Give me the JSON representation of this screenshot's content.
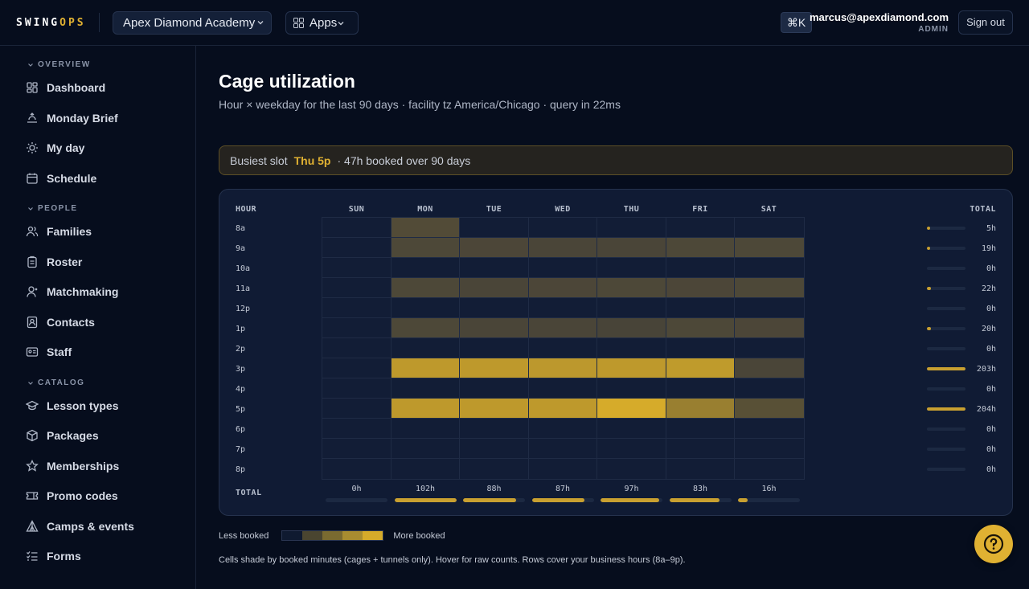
{
  "header": {
    "logo_a": "SWING",
    "logo_b": "OPS",
    "org": "Apex Diamond Academy",
    "apps": "Apps",
    "shortcut": "⌘K",
    "user_email": "marcus@apexdiamond.com",
    "user_role": "ADMIN",
    "sign_out": "Sign out"
  },
  "sidebar": {
    "sections": [
      {
        "title": "OVERVIEW",
        "items": [
          "Dashboard",
          "Monday Brief",
          "My day",
          "Schedule"
        ]
      },
      {
        "title": "PEOPLE",
        "items": [
          "Families",
          "Roster",
          "Matchmaking",
          "Contacts",
          "Staff"
        ]
      },
      {
        "title": "CATALOG",
        "items": [
          "Lesson types",
          "Packages",
          "Memberships",
          "Promo codes",
          "Camps & events",
          "Forms"
        ]
      }
    ]
  },
  "page": {
    "title": "Cage utilization",
    "subtitle": "Hour × weekday for the last 90 days · facility tz America/Chicago · query in 22ms",
    "busiest_label": "Busiest slot",
    "busiest_slot": "Thu 5p",
    "busiest_detail": "· 47h booked over 90 days",
    "legend_less": "Less booked",
    "legend_more": "More booked",
    "footnote": "Cells shade by booked minutes (cages + tunnels only). Hover for raw counts. Rows cover your business hours (8a–9p).",
    "legend_colors": [
      "#0f1a30",
      "#4a4530",
      "#7a6a30",
      "#a88c30",
      "#d6ab2a"
    ]
  },
  "heatmap": {
    "hour_header": "HOUR",
    "total_header": "TOTAL",
    "total_row_label": "TOTAL",
    "days": [
      "SUN",
      "MON",
      "TUE",
      "WED",
      "THU",
      "FRI",
      "SAT"
    ],
    "hours": [
      "8a",
      "9a",
      "10a",
      "11a",
      "12p",
      "1p",
      "2p",
      "3p",
      "4p",
      "5p",
      "6p",
      "7p",
      "8p"
    ],
    "row_totals": [
      "5h",
      "19h",
      "0h",
      "22h",
      "0h",
      "20h",
      "0h",
      "203h",
      "0h",
      "204h",
      "0h",
      "0h",
      "0h"
    ],
    "row_total_fractions": [
      0.03,
      0.09,
      0,
      0.11,
      0,
      0.1,
      0,
      0.99,
      0,
      1.0,
      0,
      0,
      0
    ],
    "col_totals": [
      "0h",
      "102h",
      "88h",
      "87h",
      "97h",
      "83h",
      "16h"
    ],
    "col_total_fractions": [
      0,
      1.0,
      0.86,
      0.85,
      0.95,
      0.81,
      0.16
    ],
    "intensity": [
      [
        0,
        0.18,
        0,
        0,
        0,
        0,
        0
      ],
      [
        0,
        0.15,
        0.14,
        0.13,
        0.13,
        0.15,
        0.15
      ],
      [
        0,
        0,
        0,
        0,
        0,
        0,
        0
      ],
      [
        0,
        0.15,
        0.13,
        0.14,
        0.15,
        0.14,
        0.15
      ],
      [
        0,
        0,
        0,
        0,
        0,
        0,
        0
      ],
      [
        0,
        0.15,
        0.13,
        0.13,
        0.12,
        0.15,
        0.14
      ],
      [
        0,
        0,
        0,
        0,
        0,
        0,
        0
      ],
      [
        0,
        0.85,
        0.85,
        0.84,
        0.85,
        0.86,
        0.13
      ],
      [
        0,
        0,
        0,
        0,
        0,
        0,
        0
      ],
      [
        0,
        0.85,
        0.85,
        0.85,
        1.0,
        0.62,
        0.22
      ],
      [
        0,
        0,
        0,
        0,
        0,
        0,
        0
      ],
      [
        0,
        0,
        0,
        0,
        0,
        0,
        0
      ],
      [
        0,
        0,
        0,
        0,
        0,
        0,
        0
      ]
    ]
  }
}
